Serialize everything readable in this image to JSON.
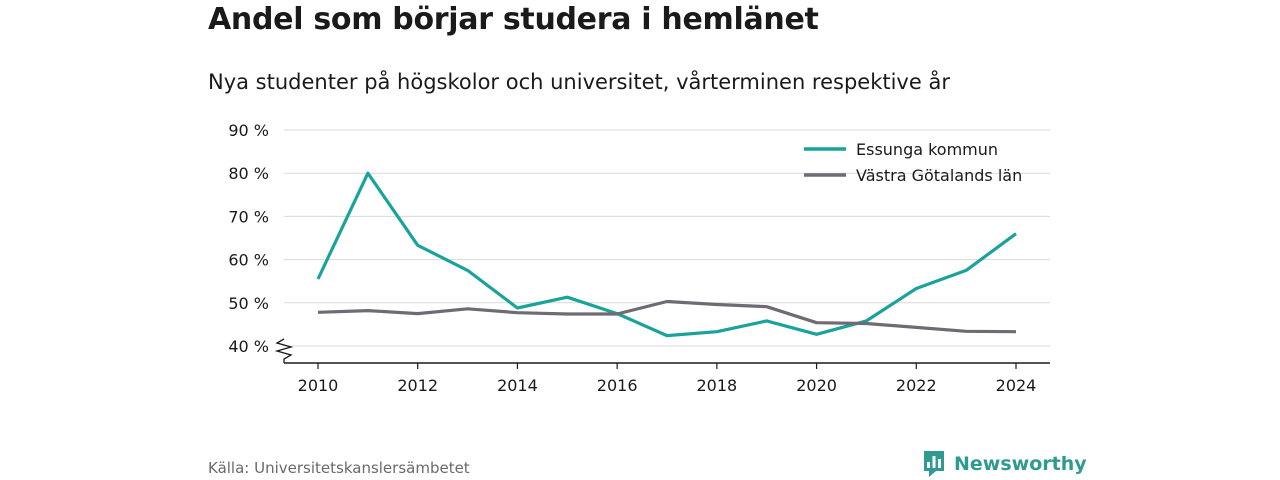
{
  "header": {
    "title": "Andel som börjar studera i hemlänet",
    "subtitle": "Nya studenter på högskolor och universitet, vårterminen respektive år"
  },
  "footer": {
    "source": "Källa: Universitetskanslersämbetet",
    "brand": "Newsworthy"
  },
  "chart_data": {
    "type": "line",
    "title": "Andel som börjar studera i hemlänet",
    "subtitle": "Nya studenter på högskolor och universitet, vårterminen respektive år",
    "x": [
      2010,
      2011,
      2012,
      2013,
      2014,
      2015,
      2016,
      2017,
      2018,
      2019,
      2020,
      2021,
      2022,
      2023,
      2024
    ],
    "series": [
      {
        "name": "Essunga kommun",
        "color": "#1aa39a",
        "values": [
          55.5,
          80,
          63.3,
          57.5,
          48.8,
          51.3,
          47.5,
          42.4,
          43.3,
          45.8,
          42.7,
          45.8,
          53.3,
          57.5,
          66
        ]
      },
      {
        "name": "Västra Götalands län",
        "color": "#6e6b72",
        "values": [
          47.8,
          48.2,
          47.5,
          48.6,
          47.7,
          47.4,
          47.4,
          50.3,
          49.6,
          49.1,
          45.4,
          45.2,
          44.3,
          43.4,
          43.3
        ]
      }
    ],
    "ylim": [
      40,
      90
    ],
    "yticks": [
      40,
      50,
      60,
      70,
      80,
      90
    ],
    "ytick_labels": [
      "40 %",
      "50 %",
      "60 %",
      "70 %",
      "80 %",
      "90 %"
    ],
    "xticks": [
      2010,
      2012,
      2014,
      2016,
      2018,
      2020,
      2022,
      2024
    ],
    "xtick_labels": [
      "2010",
      "2012",
      "2014",
      "2016",
      "2018",
      "2020",
      "2022",
      "2024"
    ],
    "y_axis_break": true,
    "grid": true,
    "legend": "top-right"
  }
}
